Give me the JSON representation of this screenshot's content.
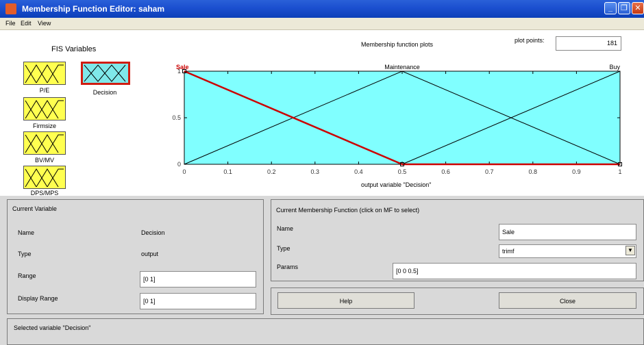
{
  "window": {
    "title": "Membership Function Editor: saham"
  },
  "menu": {
    "items": [
      "File",
      "Edit",
      "View"
    ]
  },
  "fis_variables": {
    "title": "FIS Variables",
    "inputs": [
      "P/E",
      "Firmsize",
      "BV/MV",
      "DPS/MPS"
    ],
    "output": "Decision"
  },
  "plot": {
    "title": "Membership function plots",
    "plot_points_label": "plot points:",
    "plot_points_value": "181",
    "xlabel": "output variable \"Decision\""
  },
  "chart_data": {
    "type": "line",
    "title": "Membership function plots",
    "xlabel": "output variable \"Decision\"",
    "ylabel": "",
    "xlim": [
      0,
      1
    ],
    "ylim": [
      0,
      1
    ],
    "x_ticks": [
      "0",
      "0.1",
      "0.2",
      "0.3",
      "0.4",
      "0.5",
      "0.6",
      "0.7",
      "0.8",
      "0.9",
      "1"
    ],
    "y_ticks": [
      "0",
      "0.5",
      "1"
    ],
    "background_color": "#80ffff",
    "series": [
      {
        "name": "Sale",
        "x": [
          0,
          0,
          0.5,
          1
        ],
        "y": [
          1,
          1,
          0,
          0
        ],
        "selected": true,
        "color": "#cc0000"
      },
      {
        "name": "Maintenance",
        "x": [
          0,
          0.5,
          1
        ],
        "y": [
          0,
          1,
          0
        ],
        "selected": false,
        "color": "#000000"
      },
      {
        "name": "Buy",
        "x": [
          0.5,
          1,
          1
        ],
        "y": [
          0,
          1,
          1
        ],
        "selected": false,
        "color": "#000000"
      }
    ]
  },
  "current_variable": {
    "title": "Current Variable",
    "name_label": "Name",
    "name_value": "Decision",
    "type_label": "Type",
    "type_value": "output",
    "range_label": "Range",
    "range_value": "[0 1]",
    "display_range_label": "Display Range",
    "display_range_value": "[0 1]"
  },
  "current_mf": {
    "title": "Current Membership Function (click on MF to select)",
    "name_label": "Name",
    "name_value": "Sale",
    "type_label": "Type",
    "type_value": "trimf",
    "params_label": "Params",
    "params_value": "[0 0 0.5]"
  },
  "buttons": {
    "help": "Help",
    "close": "Close"
  },
  "status": {
    "text": "Selected variable \"Decision\""
  },
  "colors": {
    "titlebar": "#1b4fcf",
    "input_var": "#ffff50",
    "selected_var": "#7fe8ea",
    "selected_border": "#d01c10"
  }
}
